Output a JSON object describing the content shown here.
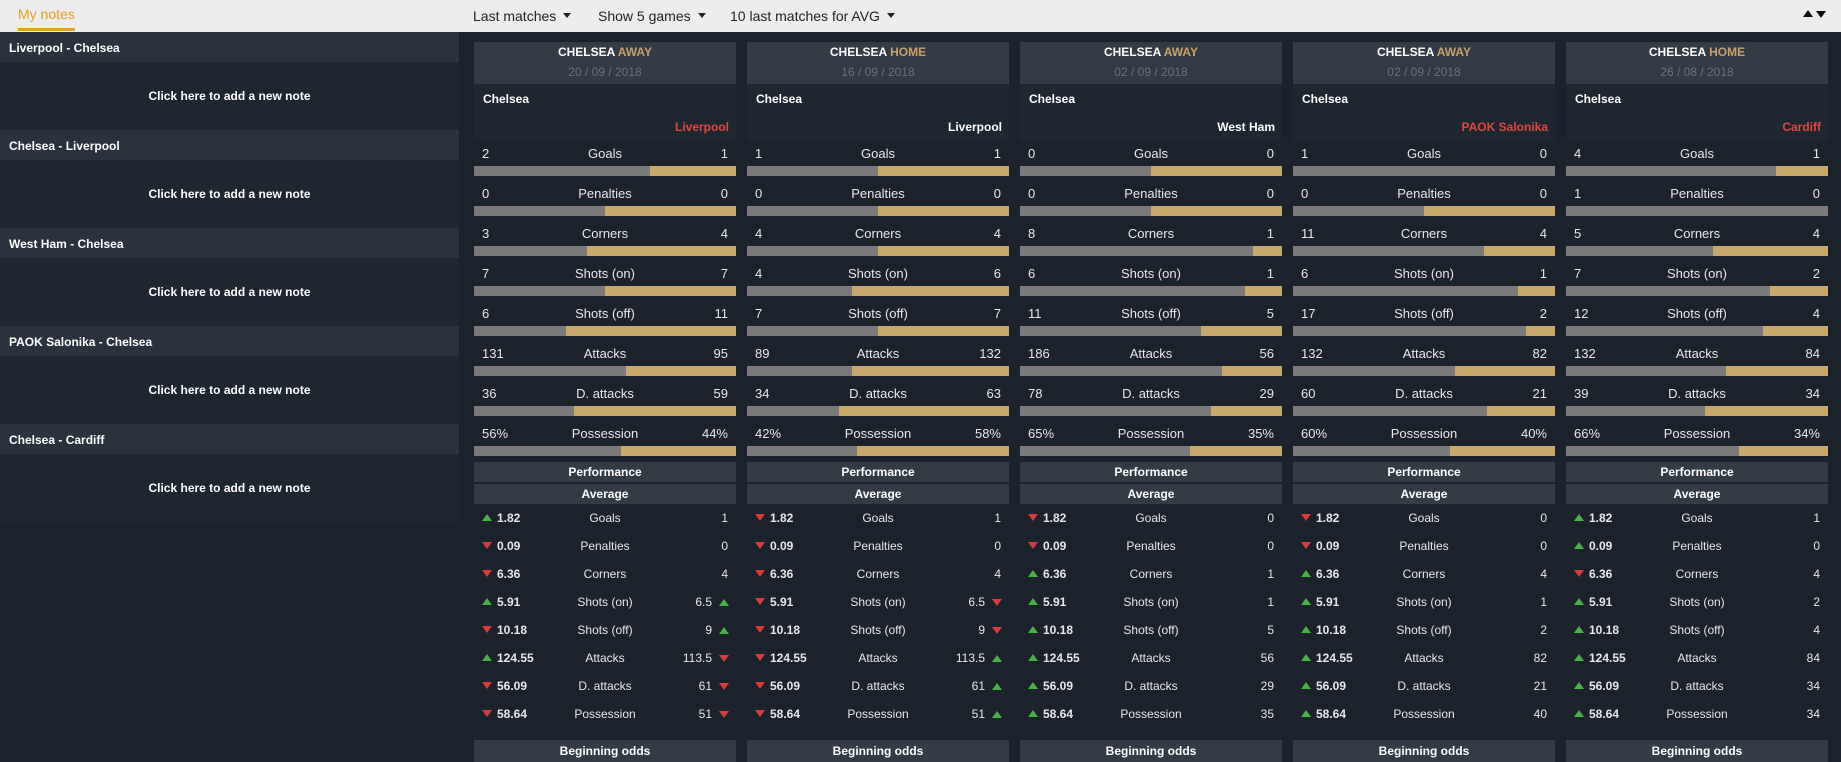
{
  "notes": {
    "tab_label": "My notes",
    "items": [
      {
        "title": "Liverpool - Chelsea",
        "action": "Click here to add a new note"
      },
      {
        "title": "Chelsea - Liverpool",
        "action": "Click here to add a new note"
      },
      {
        "title": "West Ham - Chelsea",
        "action": "Click here to add a new note"
      },
      {
        "title": "PAOK Salonika - Chelsea",
        "action": "Click here to add a new note"
      },
      {
        "title": "Chelsea - Cardiff",
        "action": "Click here to add a new note"
      }
    ]
  },
  "toolbar": {
    "last_matches": "Last matches",
    "show_games": "Show 5 games",
    "avg_matches": "10 last matches for AVG"
  },
  "labels": {
    "performance": "Performance",
    "average": "Average",
    "beginning_odds": "Beginning odds"
  },
  "colors": {
    "accent": "#e6a21c",
    "bar_home": "#7a7a7a",
    "bar_away": "#c8a96b",
    "up": "#4ab04a",
    "down": "#d93c3c",
    "loser_team": "#e0473e"
  },
  "matches": [
    {
      "team": "CHELSEA",
      "venue": "AWAY",
      "date": "20 / 09 / 2018",
      "home_team": "Chelsea",
      "away_team": "Liverpool",
      "away_red": true,
      "stats": [
        {
          "label": "Goals",
          "left": "2",
          "right": "1",
          "share": 0.33
        },
        {
          "label": "Penalties",
          "left": "0",
          "right": "0",
          "share": 0.5
        },
        {
          "label": "Corners",
          "left": "3",
          "right": "4",
          "share": 0.57
        },
        {
          "label": "Shots (on)",
          "left": "7",
          "right": "7",
          "share": 0.5
        },
        {
          "label": "Shots (off)",
          "left": "6",
          "right": "11",
          "share": 0.65
        },
        {
          "label": "Attacks",
          "left": "131",
          "right": "95",
          "share": 0.42
        },
        {
          "label": "D. attacks",
          "left": "36",
          "right": "59",
          "share": 0.62
        },
        {
          "label": "Possession",
          "left": "56%",
          "right": "44%",
          "share": 0.44
        }
      ],
      "averages": [
        {
          "label": "Goals",
          "left": "1.82",
          "dir": "up",
          "right": "1",
          "ind": null
        },
        {
          "label": "Penalties",
          "left": "0.09",
          "dir": "down",
          "right": "0",
          "ind": null
        },
        {
          "label": "Corners",
          "left": "6.36",
          "dir": "down",
          "right": "4",
          "ind": null
        },
        {
          "label": "Shots (on)",
          "left": "5.91",
          "dir": "up",
          "right": "6.5",
          "ind": "up"
        },
        {
          "label": "Shots (off)",
          "left": "10.18",
          "dir": "down",
          "right": "9",
          "ind": "up"
        },
        {
          "label": "Attacks",
          "left": "124.55",
          "dir": "up",
          "right": "113.5",
          "ind": "down"
        },
        {
          "label": "D. attacks",
          "left": "56.09",
          "dir": "down",
          "right": "61",
          "ind": "down"
        },
        {
          "label": "Possession",
          "left": "58.64",
          "dir": "down",
          "right": "51",
          "ind": "down"
        }
      ]
    },
    {
      "team": "CHELSEA",
      "venue": "HOME",
      "date": "16 / 09 / 2018",
      "home_team": "Chelsea",
      "away_team": "Liverpool",
      "away_red": false,
      "stats": [
        {
          "label": "Goals",
          "left": "1",
          "right": "1",
          "share": 0.5
        },
        {
          "label": "Penalties",
          "left": "0",
          "right": "0",
          "share": 0.5
        },
        {
          "label": "Corners",
          "left": "4",
          "right": "4",
          "share": 0.5
        },
        {
          "label": "Shots (on)",
          "left": "4",
          "right": "6",
          "share": 0.6
        },
        {
          "label": "Shots (off)",
          "left": "7",
          "right": "7",
          "share": 0.5
        },
        {
          "label": "Attacks",
          "left": "89",
          "right": "132",
          "share": 0.6
        },
        {
          "label": "D. attacks",
          "left": "34",
          "right": "63",
          "share": 0.65
        },
        {
          "label": "Possession",
          "left": "42%",
          "right": "58%",
          "share": 0.58
        }
      ],
      "averages": [
        {
          "label": "Goals",
          "left": "1.82",
          "dir": "down",
          "right": "1",
          "ind": null
        },
        {
          "label": "Penalties",
          "left": "0.09",
          "dir": "down",
          "right": "0",
          "ind": null
        },
        {
          "label": "Corners",
          "left": "6.36",
          "dir": "down",
          "right": "4",
          "ind": null
        },
        {
          "label": "Shots (on)",
          "left": "5.91",
          "dir": "down",
          "right": "6.5",
          "ind": "down"
        },
        {
          "label": "Shots (off)",
          "left": "10.18",
          "dir": "down",
          "right": "9",
          "ind": "down"
        },
        {
          "label": "Attacks",
          "left": "124.55",
          "dir": "down",
          "right": "113.5",
          "ind": "up"
        },
        {
          "label": "D. attacks",
          "left": "56.09",
          "dir": "down",
          "right": "61",
          "ind": "up"
        },
        {
          "label": "Possession",
          "left": "58.64",
          "dir": "down",
          "right": "51",
          "ind": "up"
        }
      ]
    },
    {
      "team": "CHELSEA",
      "venue": "AWAY",
      "date": "02 / 09 / 2018",
      "home_team": "Chelsea",
      "away_team": "West Ham",
      "away_red": false,
      "stats": [
        {
          "label": "Goals",
          "left": "0",
          "right": "0",
          "share": 0.5
        },
        {
          "label": "Penalties",
          "left": "0",
          "right": "0",
          "share": 0.5
        },
        {
          "label": "Corners",
          "left": "8",
          "right": "1",
          "share": 0.11
        },
        {
          "label": "Shots (on)",
          "left": "6",
          "right": "1",
          "share": 0.14
        },
        {
          "label": "Shots (off)",
          "left": "11",
          "right": "5",
          "share": 0.31
        },
        {
          "label": "Attacks",
          "left": "186",
          "right": "56",
          "share": 0.23
        },
        {
          "label": "D. attacks",
          "left": "78",
          "right": "29",
          "share": 0.27
        },
        {
          "label": "Possession",
          "left": "65%",
          "right": "35%",
          "share": 0.35
        }
      ],
      "averages": [
        {
          "label": "Goals",
          "left": "1.82",
          "dir": "down",
          "right": "0",
          "ind": null
        },
        {
          "label": "Penalties",
          "left": "0.09",
          "dir": "down",
          "right": "0",
          "ind": null
        },
        {
          "label": "Corners",
          "left": "6.36",
          "dir": "up",
          "right": "1",
          "ind": null
        },
        {
          "label": "Shots (on)",
          "left": "5.91",
          "dir": "up",
          "right": "1",
          "ind": null
        },
        {
          "label": "Shots (off)",
          "left": "10.18",
          "dir": "up",
          "right": "5",
          "ind": null
        },
        {
          "label": "Attacks",
          "left": "124.55",
          "dir": "up",
          "right": "56",
          "ind": null
        },
        {
          "label": "D. attacks",
          "left": "56.09",
          "dir": "up",
          "right": "29",
          "ind": null
        },
        {
          "label": "Possession",
          "left": "58.64",
          "dir": "up",
          "right": "35",
          "ind": null
        }
      ]
    },
    {
      "team": "CHELSEA",
      "venue": "AWAY",
      "date": "02 / 09 / 2018",
      "home_team": "Chelsea",
      "away_team": "PAOK Salonika",
      "away_red": true,
      "stats": [
        {
          "label": "Goals",
          "left": "1",
          "right": "0",
          "share": 0.0
        },
        {
          "label": "Penalties",
          "left": "0",
          "right": "0",
          "share": 0.5
        },
        {
          "label": "Corners",
          "left": "11",
          "right": "4",
          "share": 0.27
        },
        {
          "label": "Shots (on)",
          "left": "6",
          "right": "1",
          "share": 0.14
        },
        {
          "label": "Shots (off)",
          "left": "17",
          "right": "2",
          "share": 0.11
        },
        {
          "label": "Attacks",
          "left": "132",
          "right": "82",
          "share": 0.38
        },
        {
          "label": "D. attacks",
          "left": "60",
          "right": "21",
          "share": 0.26
        },
        {
          "label": "Possession",
          "left": "60%",
          "right": "40%",
          "share": 0.4
        }
      ],
      "averages": [
        {
          "label": "Goals",
          "left": "1.82",
          "dir": "down",
          "right": "0",
          "ind": null
        },
        {
          "label": "Penalties",
          "left": "0.09",
          "dir": "down",
          "right": "0",
          "ind": null
        },
        {
          "label": "Corners",
          "left": "6.36",
          "dir": "up",
          "right": "4",
          "ind": null
        },
        {
          "label": "Shots (on)",
          "left": "5.91",
          "dir": "up",
          "right": "1",
          "ind": null
        },
        {
          "label": "Shots (off)",
          "left": "10.18",
          "dir": "up",
          "right": "2",
          "ind": null
        },
        {
          "label": "Attacks",
          "left": "124.55",
          "dir": "up",
          "right": "82",
          "ind": null
        },
        {
          "label": "D. attacks",
          "left": "56.09",
          "dir": "up",
          "right": "21",
          "ind": null
        },
        {
          "label": "Possession",
          "left": "58.64",
          "dir": "up",
          "right": "40",
          "ind": null
        }
      ]
    },
    {
      "team": "CHELSEA",
      "venue": "HOME",
      "date": "26 / 08 / 2018",
      "home_team": "Chelsea",
      "away_team": "Cardiff",
      "away_red": true,
      "stats": [
        {
          "label": "Goals",
          "left": "4",
          "right": "1",
          "share": 0.2
        },
        {
          "label": "Penalties",
          "left": "1",
          "right": "0",
          "share": 0.0
        },
        {
          "label": "Corners",
          "left": "5",
          "right": "4",
          "share": 0.44
        },
        {
          "label": "Shots (on)",
          "left": "7",
          "right": "2",
          "share": 0.22
        },
        {
          "label": "Shots (off)",
          "left": "12",
          "right": "4",
          "share": 0.25
        },
        {
          "label": "Attacks",
          "left": "132",
          "right": "84",
          "share": 0.39
        },
        {
          "label": "D. attacks",
          "left": "39",
          "right": "34",
          "share": 0.47
        },
        {
          "label": "Possession",
          "left": "66%",
          "right": "34%",
          "share": 0.34
        }
      ],
      "averages": [
        {
          "label": "Goals",
          "left": "1.82",
          "dir": "up",
          "right": "1",
          "ind": null
        },
        {
          "label": "Penalties",
          "left": "0.09",
          "dir": "up",
          "right": "0",
          "ind": null
        },
        {
          "label": "Corners",
          "left": "6.36",
          "dir": "down",
          "right": "4",
          "ind": null
        },
        {
          "label": "Shots (on)",
          "left": "5.91",
          "dir": "up",
          "right": "2",
          "ind": null
        },
        {
          "label": "Shots (off)",
          "left": "10.18",
          "dir": "up",
          "right": "4",
          "ind": null
        },
        {
          "label": "Attacks",
          "left": "124.55",
          "dir": "up",
          "right": "84",
          "ind": null
        },
        {
          "label": "D. attacks",
          "left": "56.09",
          "dir": "up",
          "right": "34",
          "ind": null
        },
        {
          "label": "Possession",
          "left": "58.64",
          "dir": "up",
          "right": "34",
          "ind": null
        }
      ]
    }
  ]
}
